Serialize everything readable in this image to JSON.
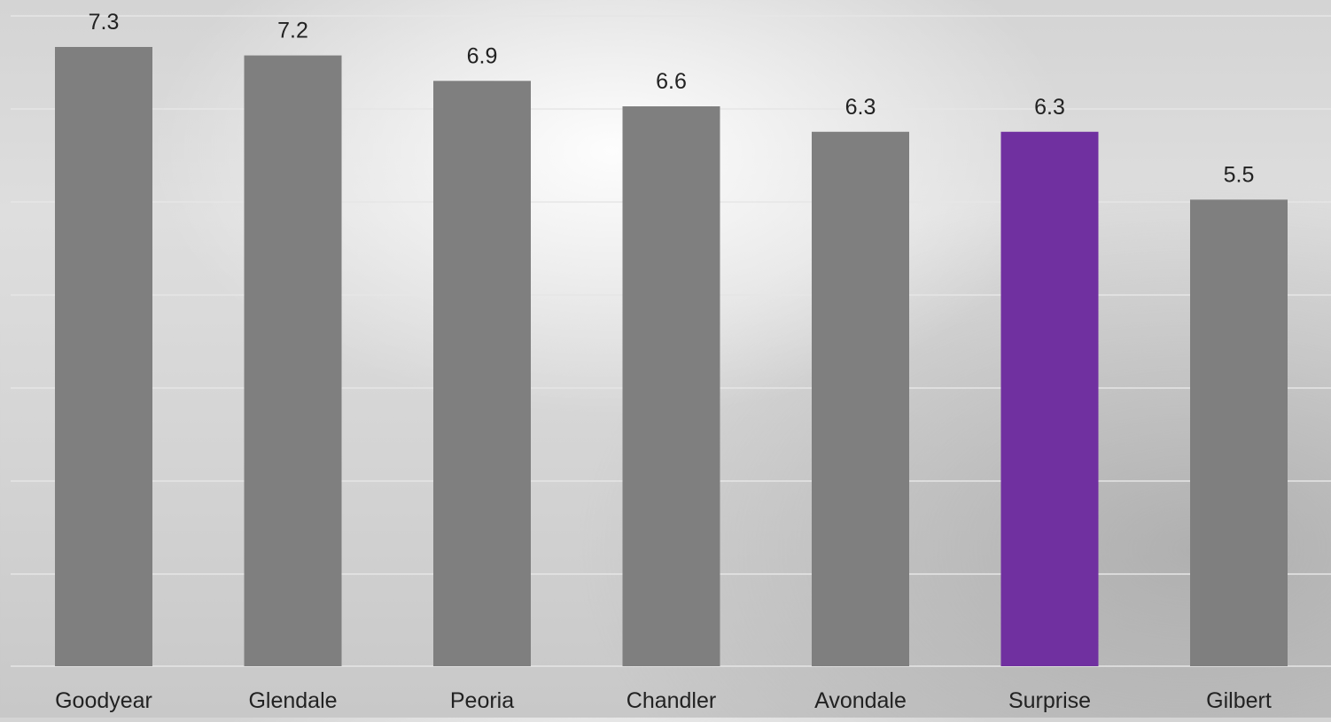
{
  "chart_data": {
    "type": "bar",
    "categories": [
      "Goodyear",
      "Glendale",
      "Peoria",
      "Chandler",
      "Avondale",
      "Surprise",
      "Gilbert"
    ],
    "values": [
      7.3,
      7.2,
      6.9,
      6.6,
      6.3,
      6.3,
      5.5
    ],
    "data_labels": [
      "7.3",
      "7.2",
      "6.9",
      "6.6",
      "6.3",
      "6.3",
      "5.5"
    ],
    "ylim": [
      0,
      7.3
    ],
    "grid": true,
    "legend": "none",
    "colors": {
      "default_bar": "#7f7f7f",
      "highlight_bar": "#7030a0",
      "highlight_category": "Surprise",
      "gridline": "#e6e6e6",
      "text": "#222222"
    }
  }
}
